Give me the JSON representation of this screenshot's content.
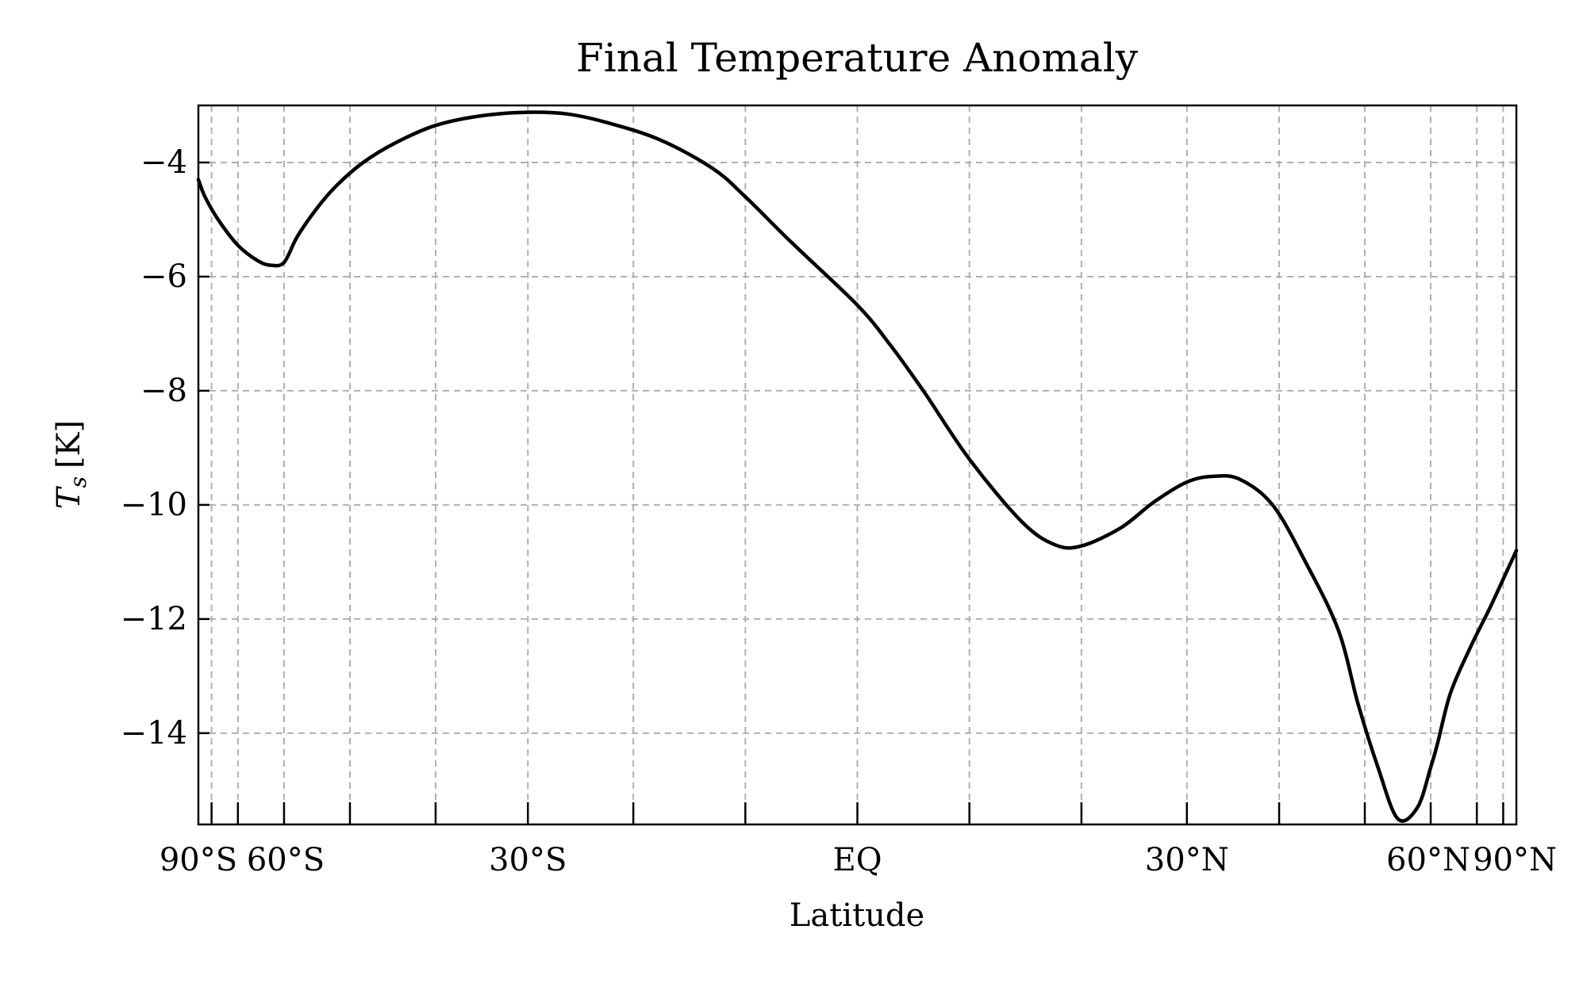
{
  "chart_data": {
    "type": "line",
    "title": "Final Temperature Anomaly",
    "xlabel": "Latitude",
    "ylabel": "T_s [K]",
    "ylabel_parts": {
      "symbol": "T",
      "subscript": "s",
      "unit": "[K]"
    },
    "grid": true,
    "legend": "none",
    "x_scale": "sine-of-latitude",
    "xlim_sin": [
      -1,
      1
    ],
    "ylim": [
      -15.6,
      -3.0
    ],
    "x_ticks": [
      {
        "lat": -90,
        "label": "90°S"
      },
      {
        "lat": -60,
        "label": "60°S"
      },
      {
        "lat": -30,
        "label": "30°S"
      },
      {
        "lat": 0,
        "label": "EQ"
      },
      {
        "lat": 30,
        "label": "30°N"
      },
      {
        "lat": 60,
        "label": "60°N"
      },
      {
        "lat": 90,
        "label": "90°N"
      }
    ],
    "x_minor_sin": [
      -0.98,
      -0.94,
      -0.87,
      -0.77,
      -0.64,
      -0.5,
      -0.34,
      -0.17,
      0.0,
      0.17,
      0.34,
      0.5,
      0.64,
      0.77,
      0.87,
      0.94,
      0.98
    ],
    "y_ticks": [
      {
        "value": -4,
        "label": "−4"
      },
      {
        "value": -6,
        "label": "−6"
      },
      {
        "value": -8,
        "label": "−8"
      },
      {
        "value": -10,
        "label": "−10"
      },
      {
        "value": -12,
        "label": "−12"
      },
      {
        "value": -14,
        "label": "−14"
      }
    ],
    "series": [
      {
        "color": "#000000",
        "x_sin": [
          -1.0,
          -0.99,
          -0.97,
          -0.94,
          -0.91,
          -0.89,
          -0.87,
          -0.85,
          -0.82,
          -0.79,
          -0.75,
          -0.7,
          -0.64,
          -0.57,
          -0.5,
          -0.44,
          -0.38,
          -0.3,
          -0.22,
          -0.17,
          -0.1,
          0.0,
          0.05,
          0.1,
          0.17,
          0.25,
          0.3,
          0.34,
          0.4,
          0.45,
          0.5,
          0.54,
          0.58,
          0.63,
          0.68,
          0.73,
          0.76,
          0.79,
          0.82,
          0.85,
          0.87,
          0.88,
          0.9,
          0.93,
          0.96,
          0.98,
          1.0
        ],
        "y": [
          -4.3,
          -4.6,
          -5.0,
          -5.45,
          -5.72,
          -5.8,
          -5.75,
          -5.3,
          -4.8,
          -4.4,
          -4.0,
          -3.65,
          -3.35,
          -3.18,
          -3.12,
          -3.15,
          -3.3,
          -3.6,
          -4.1,
          -4.6,
          -5.4,
          -6.5,
          -7.2,
          -8.0,
          -9.2,
          -10.3,
          -10.7,
          -10.72,
          -10.4,
          -9.95,
          -9.6,
          -9.5,
          -9.55,
          -10.0,
          -11.0,
          -12.2,
          -13.5,
          -14.6,
          -15.5,
          -15.3,
          -14.6,
          -14.2,
          -13.3,
          -12.5,
          -11.8,
          -11.3,
          -10.8
        ]
      }
    ]
  }
}
